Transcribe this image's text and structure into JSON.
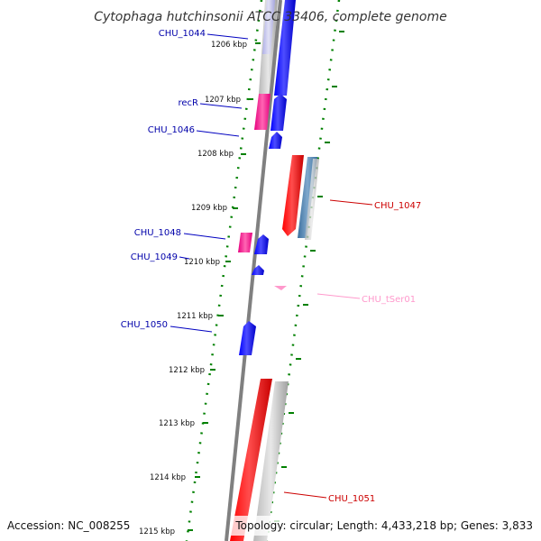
{
  "title": "Cytophaga hutchinsonii ATCC 33406, complete genome",
  "accession": "Accession: NC_008255",
  "summary": "Topology: circular; Length: 4,433,218 bp; Genes: 3,833",
  "ticks": [
    "1206 kbp",
    "1207 kbp",
    "1208 kbp",
    "1209 kbp",
    "1210 kbp",
    "1211 kbp",
    "1212 kbp",
    "1213 kbp",
    "1214 kbp",
    "1215 kbp"
  ],
  "genes": {
    "chu_1044": "CHU_1044",
    "recr": "recR",
    "chu_1046": "CHU_1046",
    "chu_1047": "CHU_1047",
    "chu_1048": "CHU_1048",
    "chu_1049": "CHU_1049",
    "chu_tser01": "CHU_tSer01",
    "chu_1050": "CHU_1050",
    "chu_1051": "CHU_1051"
  },
  "colors": {
    "forward_cds": "#0000ff",
    "reverse_cds": "#ff0000",
    "forward_rna": "#ff3399",
    "reverse_rna": "#4682b4",
    "trna": "#ff99cc",
    "gc_skew": "#aaaaaa",
    "backbone": "#808080",
    "dots": "#008000"
  }
}
